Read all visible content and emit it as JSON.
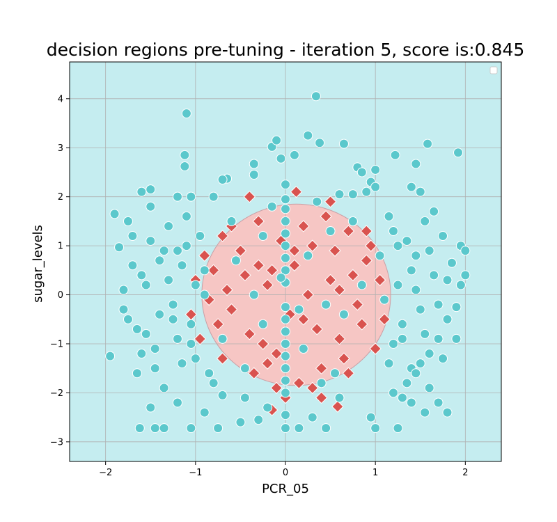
{
  "chart_data": {
    "type": "scatter",
    "title": "decision regions pre-tuning - iteration  5, score is:0.845",
    "xlabel": "PCR_05",
    "ylabel": "sugar_levels",
    "xlim": [
      -2.4,
      2.4
    ],
    "ylim": [
      -3.4,
      4.75
    ],
    "xticks": [
      -2,
      -1,
      0,
      1,
      2
    ],
    "yticks": [
      -3,
      -2,
      -1,
      0,
      1,
      2,
      3,
      4
    ],
    "xtick_labels": [
      "−2",
      "−1",
      "0",
      "1",
      "2"
    ],
    "ytick_labels": [
      "−3",
      "−2",
      "−1",
      "0",
      "1",
      "2",
      "3",
      "4"
    ],
    "grid": true,
    "legend_placement": "top-right",
    "background_region_color": "#c5edf0",
    "decision_region": {
      "shape": "ellipse",
      "center": [
        0.12,
        0.0
      ],
      "radius_x": 1.05,
      "radius_y": 1.85,
      "color": "#f6c6c4"
    },
    "series": [
      {
        "marker": "diamond",
        "color": "#d9534f",
        "points": [
          [
            -0.9,
            0.8
          ],
          [
            -0.8,
            0.5
          ],
          [
            -0.7,
            1.2
          ],
          [
            -0.6,
            -0.3
          ],
          [
            -0.5,
            0.9
          ],
          [
            -0.4,
            -0.8
          ],
          [
            -0.3,
            1.5
          ],
          [
            -0.2,
            0.2
          ],
          [
            -0.1,
            -1.2
          ],
          [
            0.1,
            0.6
          ],
          [
            0.2,
            -0.5
          ],
          [
            0.3,
            1.0
          ],
          [
            0.4,
            -1.5
          ],
          [
            0.5,
            0.3
          ],
          [
            0.6,
            -0.9
          ],
          [
            0.7,
            1.3
          ],
          [
            0.8,
            -0.2
          ],
          [
            0.9,
            0.7
          ],
          [
            1.0,
            -1.1
          ],
          [
            0.15,
            -1.8
          ],
          [
            -0.35,
            -1.6
          ],
          [
            0.45,
            1.6
          ],
          [
            -0.65,
            0.1
          ],
          [
            0.25,
            0.0
          ],
          [
            -0.15,
            0.5
          ],
          [
            0.05,
            -0.4
          ],
          [
            -0.05,
            1.1
          ],
          [
            0.35,
            -0.7
          ],
          [
            -0.45,
            0.4
          ],
          [
            0.55,
            0.9
          ],
          [
            -0.75,
            -0.6
          ],
          [
            0.65,
            -1.3
          ],
          [
            -0.25,
            -1.0
          ],
          [
            0.75,
            0.4
          ],
          [
            -0.85,
            -0.1
          ],
          [
            0.85,
            -0.6
          ],
          [
            0.0,
            -2.1
          ],
          [
            0.4,
            -2.1
          ],
          [
            0.58,
            -2.28
          ],
          [
            -0.15,
            -2.35
          ],
          [
            0.12,
            2.1
          ],
          [
            0.5,
            1.9
          ],
          [
            -0.4,
            2.0
          ],
          [
            -0.1,
            -1.9
          ],
          [
            0.3,
            -1.9
          ],
          [
            -0.6,
            1.4
          ],
          [
            0.95,
            1.0
          ],
          [
            -0.95,
            -0.9
          ],
          [
            1.05,
            0.3
          ],
          [
            -1.0,
            0.3
          ],
          [
            0.2,
            1.4
          ],
          [
            -0.2,
            -1.4
          ],
          [
            0.7,
            -1.6
          ],
          [
            -0.7,
            -1.3
          ],
          [
            0.9,
            1.3
          ],
          [
            1.1,
            -0.5
          ],
          [
            -1.05,
            -0.4
          ],
          [
            0.1,
            0.9
          ],
          [
            -0.3,
            0.6
          ],
          [
            0.6,
            0.1
          ]
        ]
      },
      {
        "marker": "circle",
        "color": "#5bc8cc",
        "points": [
          [
            -1.95,
            -1.25
          ],
          [
            -1.9,
            1.65
          ],
          [
            -1.85,
            0.97
          ],
          [
            -1.8,
            0.1
          ],
          [
            -1.75,
            -0.5
          ],
          [
            -1.7,
            1.2
          ],
          [
            -1.65,
            -1.6
          ],
          [
            -1.6,
            0.4
          ],
          [
            -1.55,
            -0.8
          ],
          [
            -1.5,
            1.8
          ],
          [
            -1.45,
            -1.1
          ],
          [
            -1.4,
            0.7
          ],
          [
            -1.35,
            -1.9
          ],
          [
            -1.3,
            1.4
          ],
          [
            -1.25,
            -0.2
          ],
          [
            -1.2,
            0.9
          ],
          [
            -1.15,
            -1.4
          ],
          [
            -1.1,
            1.6
          ],
          [
            -1.05,
            -0.6
          ],
          [
            -1.0,
            0.2
          ],
          [
            -1.8,
            -0.3
          ],
          [
            -1.7,
            0.6
          ],
          [
            -1.6,
            -1.2
          ],
          [
            -1.5,
            1.1
          ],
          [
            -1.4,
            -0.4
          ],
          [
            -1.3,
            0.3
          ],
          [
            -1.2,
            -0.9
          ],
          [
            -1.1,
            1.0
          ],
          [
            -1.0,
            -1.3
          ],
          [
            -0.9,
            0.5
          ],
          [
            -1.75,
            1.5
          ],
          [
            -1.65,
            -0.7
          ],
          [
            -1.55,
            0.2
          ],
          [
            -1.45,
            -1.5
          ],
          [
            -1.35,
            0.9
          ],
          [
            -1.25,
            -0.5
          ],
          [
            -1.15,
            0.6
          ],
          [
            -1.05,
            -1.0
          ],
          [
            -0.95,
            1.2
          ],
          [
            -0.85,
            -1.6
          ],
          [
            -1.62,
            -2.72
          ],
          [
            -1.45,
            -2.72
          ],
          [
            -1.35,
            -2.72
          ],
          [
            -1.05,
            -2.72
          ],
          [
            -0.75,
            -2.72
          ],
          [
            -1.5,
            -2.3
          ],
          [
            -1.2,
            -2.2
          ],
          [
            -0.9,
            -2.4
          ],
          [
            -0.7,
            -2.05
          ],
          [
            -0.5,
            -2.6
          ],
          [
            -0.45,
            -2.1
          ],
          [
            -0.3,
            -2.55
          ],
          [
            -0.2,
            -2.3
          ],
          [
            0.0,
            -2.72
          ],
          [
            0.15,
            -2.72
          ],
          [
            0.45,
            -2.72
          ],
          [
            1.0,
            -2.72
          ],
          [
            1.25,
            -2.72
          ],
          [
            1.4,
            -2.2
          ],
          [
            1.55,
            -2.4
          ],
          [
            1.8,
            -2.4
          ],
          [
            1.7,
            -2.2
          ],
          [
            1.2,
            -2.0
          ],
          [
            0.95,
            -2.5
          ],
          [
            0.6,
            -2.1
          ],
          [
            0.3,
            -2.5
          ],
          [
            -1.1,
            3.7
          ],
          [
            -1.12,
            2.85
          ],
          [
            -1.12,
            2.62
          ],
          [
            0.34,
            4.05
          ],
          [
            0.25,
            3.25
          ],
          [
            0.38,
            3.1
          ],
          [
            0.65,
            3.08
          ],
          [
            1.58,
            3.08
          ],
          [
            -0.15,
            3.02
          ],
          [
            -0.1,
            3.15
          ],
          [
            -0.35,
            2.67
          ],
          [
            -0.35,
            2.45
          ],
          [
            -0.65,
            2.37
          ],
          [
            -0.05,
            2.78
          ],
          [
            0.1,
            2.85
          ],
          [
            1.22,
            2.85
          ],
          [
            1.45,
            2.67
          ],
          [
            1.92,
            2.9
          ],
          [
            1.0,
            2.55
          ],
          [
            0.8,
            2.6
          ],
          [
            0.85,
            2.5
          ],
          [
            0.95,
            2.3
          ],
          [
            1.0,
            2.2
          ],
          [
            1.4,
            2.2
          ],
          [
            1.5,
            2.1
          ],
          [
            0.9,
            2.1
          ],
          [
            0.75,
            2.05
          ],
          [
            0.6,
            2.05
          ],
          [
            -0.7,
            2.35
          ],
          [
            -0.8,
            2.0
          ],
          [
            -1.05,
            2.0
          ],
          [
            -1.2,
            2.0
          ],
          [
            -1.5,
            2.15
          ],
          [
            -1.6,
            2.1
          ],
          [
            1.95,
            1.0
          ],
          [
            2.0,
            0.9
          ],
          [
            2.0,
            0.4
          ],
          [
            1.95,
            0.2
          ],
          [
            1.9,
            -0.25
          ],
          [
            1.85,
            0.65
          ],
          [
            1.8,
            -0.5
          ],
          [
            1.75,
            1.2
          ],
          [
            1.7,
            -0.9
          ],
          [
            1.65,
            0.4
          ],
          [
            1.6,
            -1.2
          ],
          [
            1.55,
            1.5
          ],
          [
            1.5,
            -0.3
          ],
          [
            1.45,
            0.8
          ],
          [
            1.4,
            -1.5
          ],
          [
            1.35,
            1.1
          ],
          [
            1.3,
            -0.6
          ],
          [
            1.25,
            0.2
          ],
          [
            1.2,
            -1.0
          ],
          [
            1.15,
            1.6
          ],
          [
            1.9,
            -0.9
          ],
          [
            1.8,
            0.3
          ],
          [
            1.7,
            -0.2
          ],
          [
            1.6,
            0.9
          ],
          [
            1.5,
            -1.4
          ],
          [
            1.4,
            0.5
          ],
          [
            1.3,
            -0.9
          ],
          [
            1.2,
            1.3
          ],
          [
            1.1,
            -0.1
          ],
          [
            1.05,
            0.8
          ],
          [
            1.75,
            -1.3
          ],
          [
            1.65,
            1.7
          ],
          [
            1.55,
            -0.8
          ],
          [
            1.45,
            0.1
          ],
          [
            1.35,
            -1.8
          ],
          [
            1.25,
            1.0
          ],
          [
            1.15,
            -1.4
          ],
          [
            1.45,
            -1.6
          ],
          [
            1.6,
            -1.9
          ],
          [
            1.3,
            -2.1
          ],
          [
            0.0,
            2.25
          ],
          [
            0.0,
            1.95
          ],
          [
            0.0,
            1.75
          ],
          [
            0.0,
            1.5
          ],
          [
            0.0,
            1.25
          ],
          [
            0.0,
            1.0
          ],
          [
            0.0,
            0.75
          ],
          [
            0.0,
            0.5
          ],
          [
            0.0,
            0.25
          ],
          [
            0.0,
            -0.25
          ],
          [
            0.0,
            -0.5
          ],
          [
            0.0,
            -0.75
          ],
          [
            0.0,
            -1.0
          ],
          [
            0.0,
            -1.25
          ],
          [
            0.0,
            -1.5
          ],
          [
            0.0,
            -1.75
          ],
          [
            0.0,
            -2.0
          ],
          [
            0.0,
            -2.45
          ],
          [
            0.25,
            0.8
          ],
          [
            -0.25,
            -0.6
          ],
          [
            0.45,
            -0.2
          ],
          [
            -0.55,
            0.7
          ],
          [
            0.5,
            1.3
          ],
          [
            -0.35,
            0.0
          ],
          [
            0.2,
            -1.1
          ],
          [
            -0.7,
            -0.9
          ],
          [
            0.75,
            1.5
          ],
          [
            -0.6,
            1.5
          ],
          [
            0.35,
            1.9
          ],
          [
            -0.15,
            1.8
          ],
          [
            0.4,
            -1.8
          ],
          [
            -0.45,
            -1.5
          ],
          [
            0.65,
            -0.4
          ],
          [
            -0.9,
            0.0
          ],
          [
            0.85,
            0.2
          ],
          [
            -0.8,
            -1.8
          ],
          [
            0.55,
            -1.6
          ],
          [
            -0.25,
            1.2
          ],
          [
            0.15,
            -0.3
          ],
          [
            -0.05,
            0.35
          ]
        ]
      }
    ]
  }
}
